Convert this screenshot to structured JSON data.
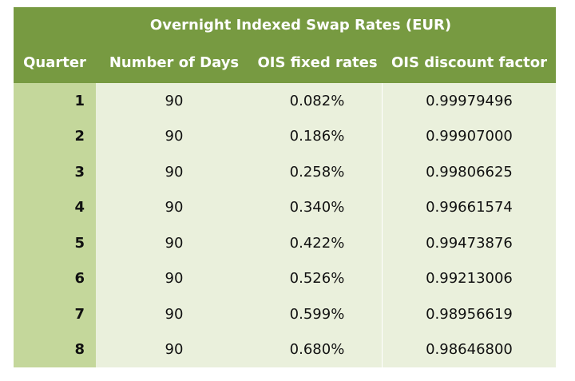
{
  "table": {
    "title": "Overnight Indexed Swap Rates (EUR)",
    "columns": [
      "Quarter",
      "Number of Days",
      "OIS fixed rates",
      "OIS discount factor"
    ],
    "rows": [
      [
        "1",
        "90",
        "0.082%",
        "0.99979496"
      ],
      [
        "2",
        "90",
        "0.186%",
        "0.99907000"
      ],
      [
        "3",
        "90",
        "0.258%",
        "0.99806625"
      ],
      [
        "4",
        "90",
        "0.340%",
        "0.99661574"
      ],
      [
        "5",
        "90",
        "0.422%",
        "0.99473876"
      ],
      [
        "6",
        "90",
        "0.526%",
        "0.99213006"
      ],
      [
        "7",
        "90",
        "0.599%",
        "0.98956619"
      ],
      [
        "8",
        "90",
        "0.680%",
        "0.98646800"
      ]
    ]
  },
  "colors": {
    "header_bg": "#779a41",
    "quarter_col_bg": "#c4d79b",
    "body_bg": "#eaf0dc",
    "header_text": "#ffffff"
  }
}
